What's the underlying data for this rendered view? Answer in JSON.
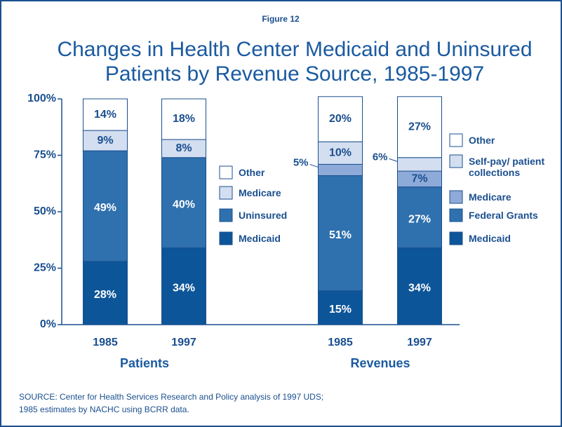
{
  "figure_label": "Figure 12",
  "title": [
    "Changes in Health Center Medicaid and Uninsured",
    "Patients by Revenue Source, 1985-1997"
  ],
  "source": [
    "SOURCE: Center for Health Services Research and Policy analysis of 1997 UDS;",
    "1985 estimates by NACHC using BCRR data."
  ],
  "chart_data": [
    {
      "type": "bar",
      "stacked": true,
      "group_label": "Patients",
      "categories": [
        "1985",
        "1997"
      ],
      "ylim": [
        0,
        100
      ],
      "yticks": [
        {
          "value": 0,
          "label": "0%"
        },
        {
          "value": 25,
          "label": "25%"
        },
        {
          "value": 50,
          "label": "50%"
        },
        {
          "value": 75,
          "label": "75%"
        },
        {
          "value": 100,
          "label": "100%"
        }
      ],
      "series": [
        {
          "name": "Medicaid",
          "color": "#0d5599",
          "values": [
            28,
            34
          ],
          "value_labels": [
            "28%",
            "34%"
          ]
        },
        {
          "name": "Uninsured",
          "color": "#2f70ae",
          "values": [
            49,
            40
          ],
          "value_labels": [
            "49%",
            "40%"
          ]
        },
        {
          "name": "Medicare",
          "color": "#d3def0",
          "values": [
            9,
            8
          ],
          "value_labels": [
            "9%",
            "8%"
          ]
        },
        {
          "name": "Other",
          "color": "#ffffff",
          "values": [
            14,
            18
          ],
          "value_labels": [
            "14%",
            "18%"
          ]
        }
      ]
    },
    {
      "type": "bar",
      "stacked": true,
      "group_label": "Revenues",
      "categories": [
        "1985",
        "1997"
      ],
      "ylim": [
        0,
        100
      ],
      "series": [
        {
          "name": "Medicaid",
          "color": "#0d5599",
          "values": [
            15,
            34
          ],
          "value_labels": [
            "15%",
            "34%"
          ]
        },
        {
          "name": "Federal Grants",
          "color": "#2f70ae",
          "values": [
            51,
            27
          ],
          "value_labels": [
            "51%",
            "27%"
          ]
        },
        {
          "name": "Medicare",
          "color": "#8eaad8",
          "values": [
            5,
            7
          ],
          "value_labels": [
            "5%",
            "7%"
          ]
        },
        {
          "name": "Self-pay/ patient collections",
          "color": "#d3def0",
          "values": [
            10,
            6
          ],
          "value_labels": [
            "10%",
            "6%"
          ]
        },
        {
          "name": "Other",
          "color": "#ffffff",
          "values": [
            20,
            27
          ],
          "value_labels": [
            "20%",
            "27%"
          ]
        }
      ]
    }
  ]
}
